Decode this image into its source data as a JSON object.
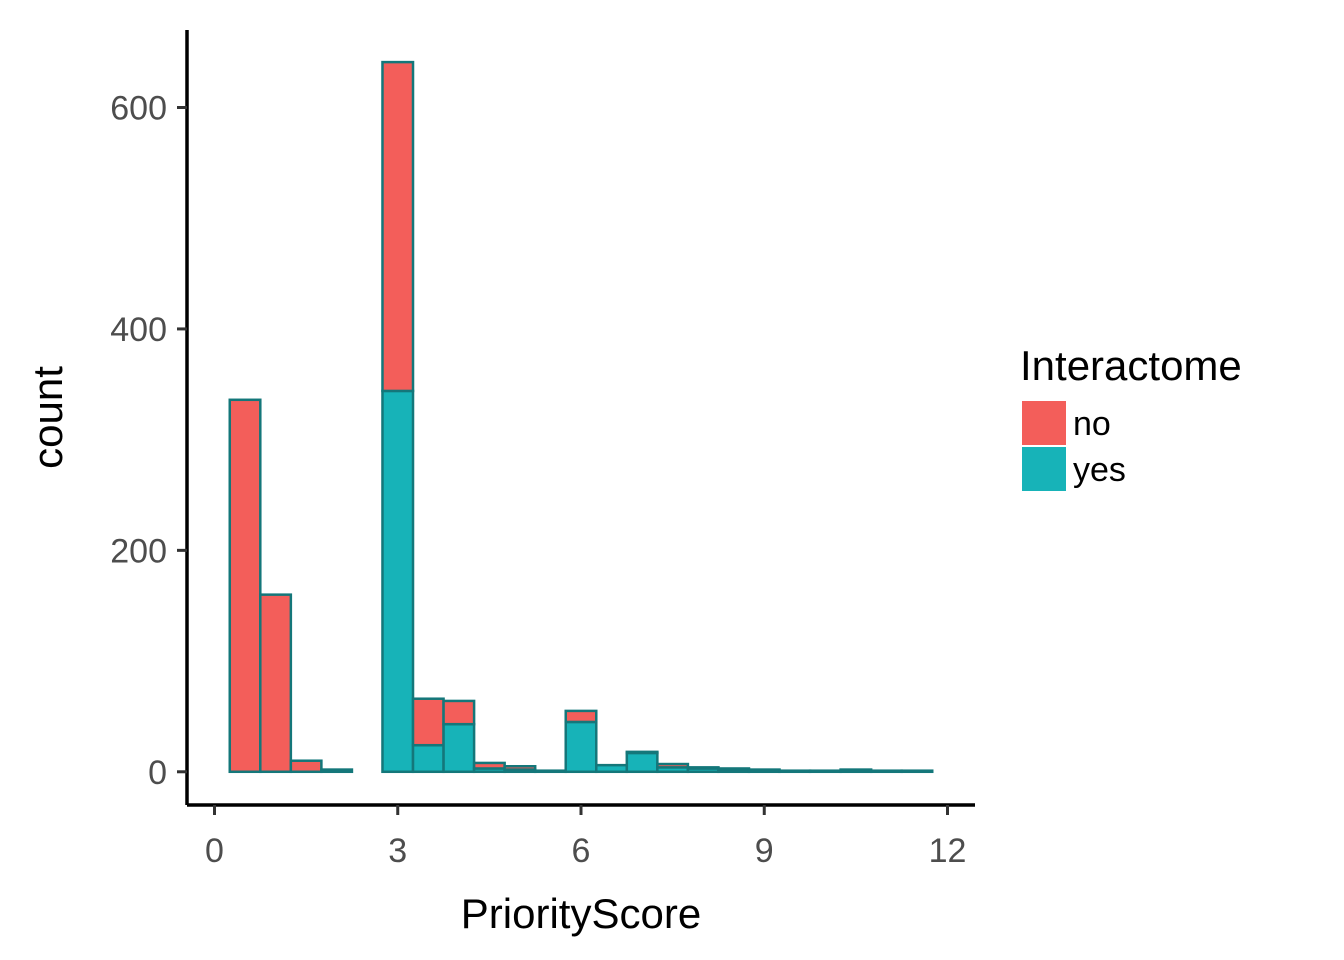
{
  "chart_data": {
    "type": "bar",
    "subtype": "stacked-histogram",
    "title": "",
    "xlabel": "PriorityScore",
    "ylabel": "count",
    "xlim": [
      -0.45,
      12.45
    ],
    "ylim": [
      -30,
      670
    ],
    "xticks": [
      0,
      3,
      6,
      9,
      12
    ],
    "yticks": [
      0,
      200,
      400,
      600
    ],
    "bin_width": 0.5,
    "bin_starts": [
      0.25,
      0.75,
      1.25,
      1.75,
      2.25,
      2.75,
      3.25,
      3.75,
      4.25,
      4.75,
      5.25,
      5.75,
      6.25,
      6.75,
      7.25,
      7.75,
      8.25,
      8.75,
      9.25,
      9.75,
      10.25,
      10.75,
      11.25
    ],
    "series": [
      {
        "name": "yes",
        "color": "#17b3b8",
        "values": [
          0,
          0,
          0,
          0,
          0,
          344,
          24,
          43,
          3,
          2,
          1,
          45,
          6,
          17,
          4,
          3,
          2,
          1,
          1,
          1,
          2,
          1,
          1
        ]
      },
      {
        "name": "no",
        "color": "#f35e5a",
        "values": [
          336,
          160,
          10,
          2,
          0,
          297,
          42,
          21,
          5,
          3,
          0,
          10,
          0,
          1,
          3,
          1,
          1,
          1,
          0,
          0,
          0,
          0,
          0
        ]
      }
    ],
    "grid": false,
    "legend": {
      "title": "Interactome",
      "position": "right",
      "entries": [
        "no",
        "yes"
      ]
    }
  }
}
